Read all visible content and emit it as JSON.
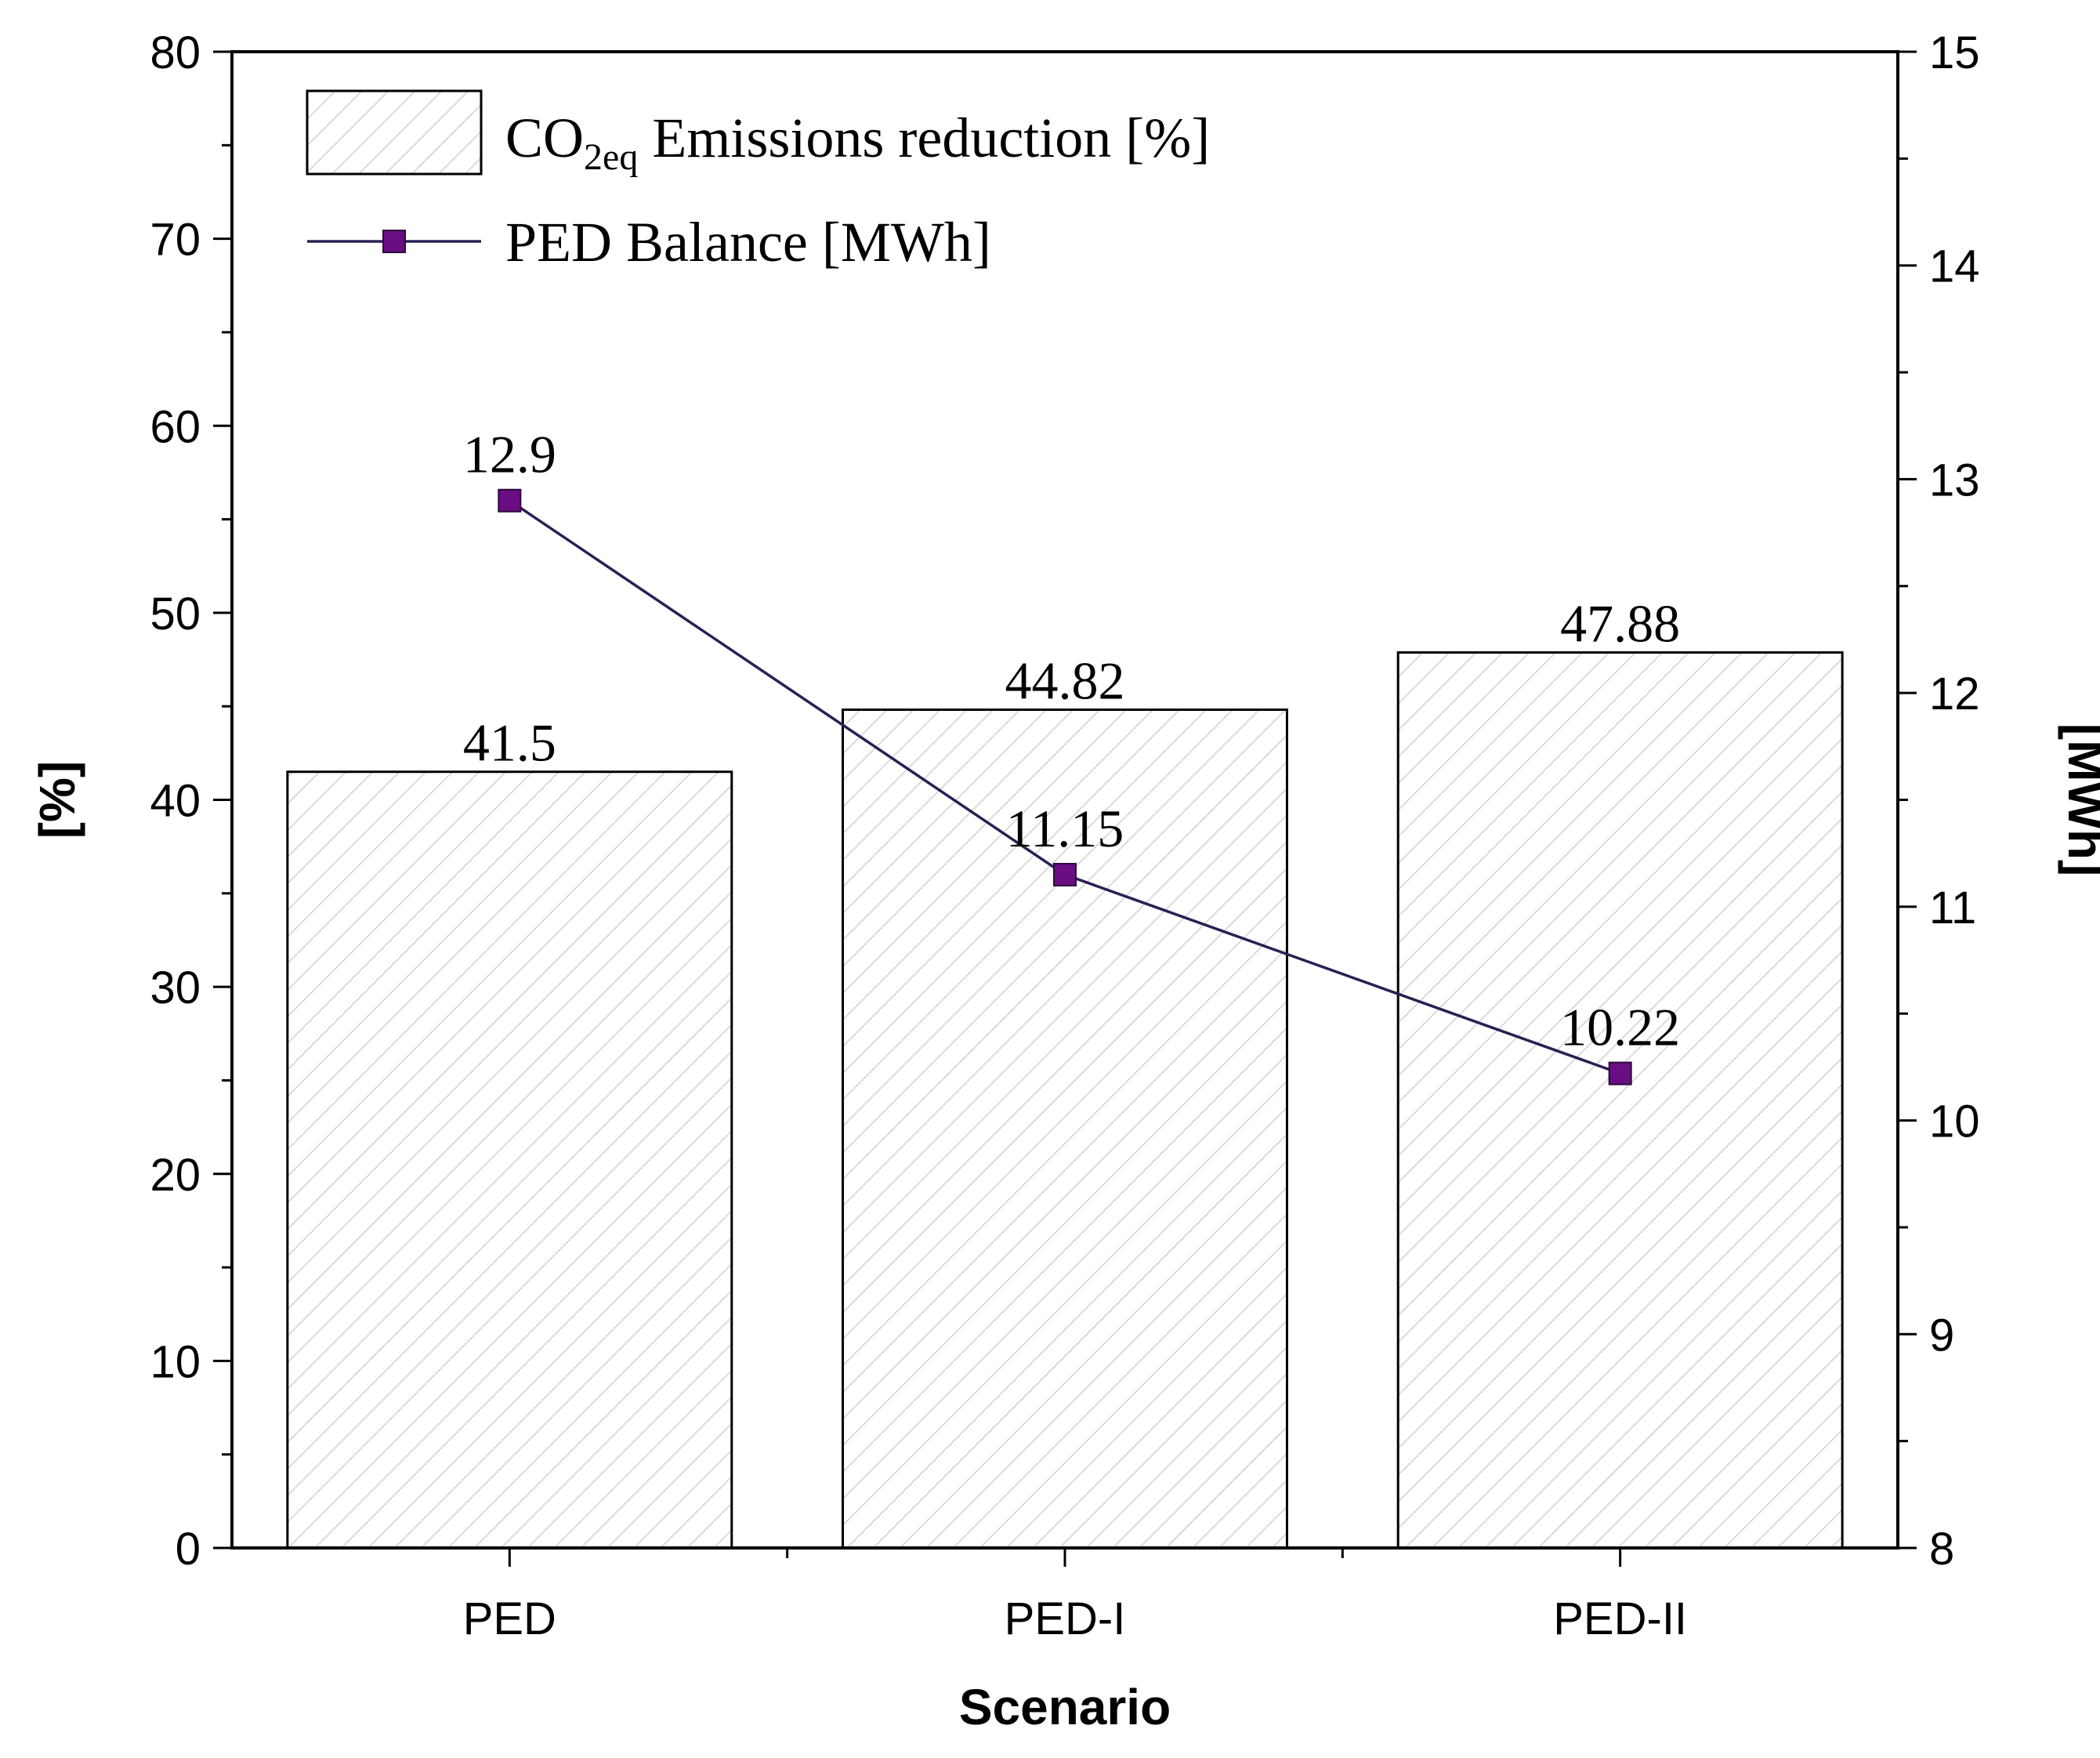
{
  "chart_data": {
    "type": "bar",
    "title": "",
    "xlabel": "Scenario",
    "ylabel": "[%]",
    "y2label": "[MWh]",
    "categories": [
      "PED",
      "PED-I",
      "PED-II"
    ],
    "ylim": [
      0,
      80
    ],
    "y2lim": [
      8,
      15
    ],
    "yticks": [
      0,
      10,
      20,
      30,
      40,
      50,
      60,
      70,
      80
    ],
    "y2ticks": [
      8,
      9,
      10,
      11,
      12,
      13,
      14,
      15
    ],
    "series": [
      {
        "name": "Emissions reduction [%]",
        "legend_prefix": "CO",
        "legend_subscript": "2eq",
        "type": "bar",
        "axis": "left",
        "values": [
          41.5,
          44.82,
          47.88
        ],
        "labels": [
          "41.5",
          "44.82",
          "47.88"
        ],
        "fill": "hatched",
        "color": "#ffffff"
      },
      {
        "name": "PED Balance [MWh]",
        "type": "line",
        "axis": "right",
        "values": [
          12.9,
          11.15,
          10.22
        ],
        "labels": [
          "12.9",
          "11.15",
          "10.22"
        ],
        "color": "#2b1f55",
        "marker_color": "#6a0d83"
      }
    ],
    "legend_position": "top-left",
    "grid": false
  }
}
